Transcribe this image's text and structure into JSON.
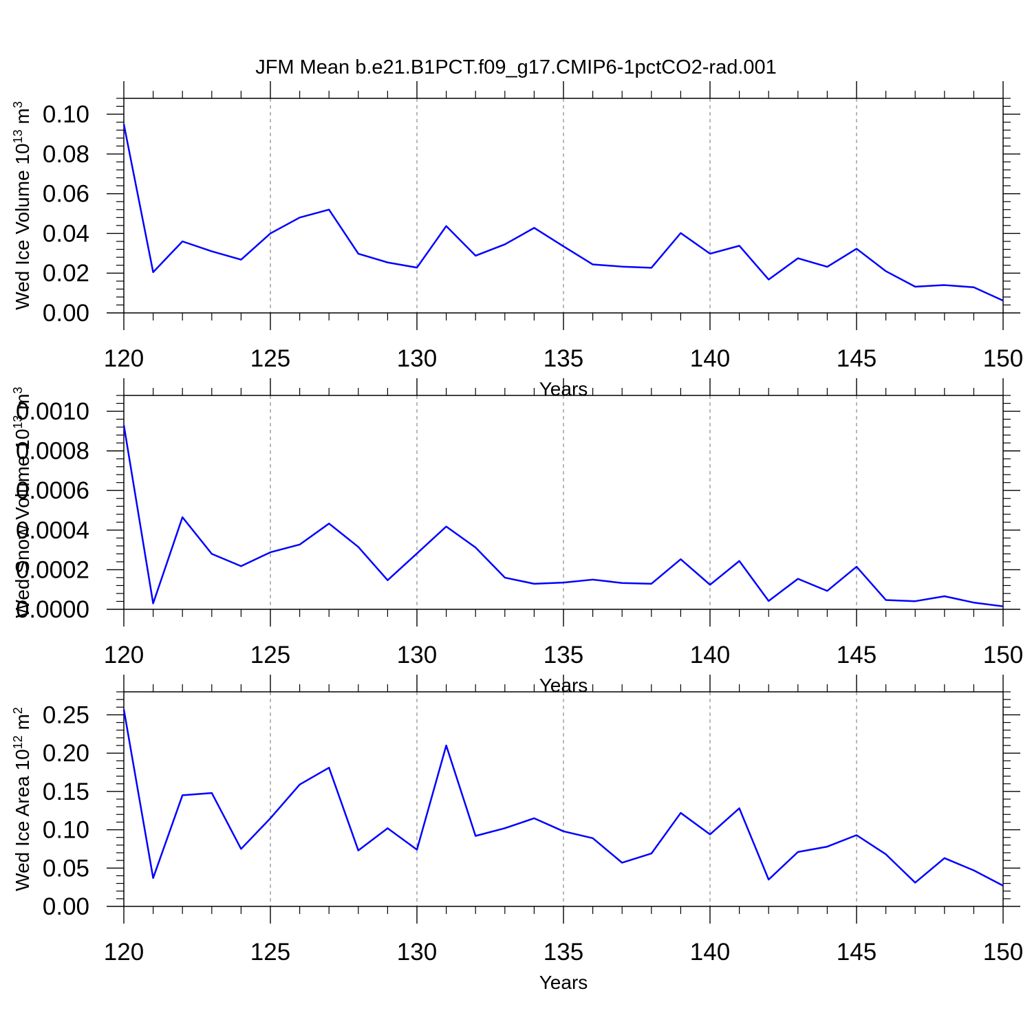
{
  "title": "JFM Mean b.e21.B1PCT.f09_g17.CMIP6-1pctCO2-rad.001",
  "colors": {
    "line": "#0000ff",
    "frame": "#000000",
    "grid": "#888888",
    "background": "#ffffff"
  },
  "chart_data": [
    {
      "type": "line",
      "xlabel": "Years",
      "ylabel": {
        "base": "Wed Ice Volume 10",
        "exponent": "13",
        "unit": " m",
        "unit_exponent": "3"
      },
      "xlim": [
        120,
        150
      ],
      "ylim": [
        0,
        0.108
      ],
      "x_ticks": [
        120,
        125,
        130,
        135,
        140,
        145,
        150
      ],
      "x_tick_labels": [
        "120",
        "125",
        "130",
        "135",
        "140",
        "145",
        "150"
      ],
      "y_ticks": [
        0,
        0.02,
        0.04,
        0.06,
        0.08,
        0.1
      ],
      "y_tick_labels": [
        "0.00",
        "0.02",
        "0.04",
        "0.06",
        "0.08",
        "0.10"
      ],
      "grid": "vertical-dashed",
      "series": [
        {
          "name": "Wed Ice Volume",
          "x": [
            120,
            121,
            122,
            123,
            124,
            125,
            126,
            127,
            128,
            129,
            130,
            131,
            132,
            133,
            134,
            135,
            136,
            137,
            138,
            139,
            140,
            141,
            142,
            143,
            144,
            145,
            146,
            147,
            148,
            149,
            150
          ],
          "values": [
            0.095,
            0.0205,
            0.036,
            0.031,
            0.0268,
            0.04,
            0.048,
            0.052,
            0.0298,
            0.0254,
            0.0228,
            0.0437,
            0.0288,
            0.0345,
            0.0428,
            0.0335,
            0.0244,
            0.0233,
            0.0227,
            0.0402,
            0.0298,
            0.0338,
            0.0168,
            0.0275,
            0.0232,
            0.0323,
            0.021,
            0.0132,
            0.014,
            0.0129,
            0.0062
          ]
        }
      ]
    },
    {
      "type": "line",
      "xlabel": "Years",
      "ylabel": {
        "base": "Wed Snow Volume 10",
        "exponent": "13",
        "unit": " m",
        "unit_exponent": "3"
      },
      "xlim": [
        120,
        150
      ],
      "ylim": [
        0,
        0.00108
      ],
      "x_ticks": [
        120,
        125,
        130,
        135,
        140,
        145,
        150
      ],
      "x_tick_labels": [
        "120",
        "125",
        "130",
        "135",
        "140",
        "145",
        "150"
      ],
      "y_ticks": [
        0,
        0.0002,
        0.0004,
        0.0006,
        0.0008,
        0.001
      ],
      "y_tick_labels": [
        "0.0000",
        "0.0002",
        "0.0004",
        "0.0006",
        "0.0008",
        "0.0010"
      ],
      "grid": "vertical-dashed",
      "series": [
        {
          "name": "Wed Snow Volume",
          "x": [
            120,
            121,
            122,
            123,
            124,
            125,
            126,
            127,
            128,
            129,
            130,
            131,
            132,
            133,
            134,
            135,
            136,
            137,
            138,
            139,
            140,
            141,
            142,
            143,
            144,
            145,
            146,
            147,
            148,
            149,
            150
          ],
          "values": [
            0.00093,
            3e-05,
            0.000465,
            0.00028,
            0.000218,
            0.000288,
            0.000327,
            0.000433,
            0.000315,
            0.000147,
            0.000282,
            0.000418,
            0.000312,
            0.00016,
            0.000129,
            0.000135,
            0.00015,
            0.000133,
            0.000129,
            0.000253,
            0.000124,
            0.000244,
            4.2e-05,
            0.000154,
            9.3e-05,
            0.000215,
            4.7e-05,
            4.1e-05,
            6.6e-05,
            3.4e-05,
            1.5e-05
          ]
        }
      ]
    },
    {
      "type": "line",
      "xlabel": "Years",
      "ylabel": {
        "base": "Wed Ice Area 10",
        "exponent": "12",
        "unit": " m",
        "unit_exponent": "2"
      },
      "xlim": [
        120,
        150
      ],
      "ylim": [
        0,
        0.28
      ],
      "x_ticks": [
        120,
        125,
        130,
        135,
        140,
        145,
        150
      ],
      "x_tick_labels": [
        "120",
        "125",
        "130",
        "135",
        "140",
        "145",
        "150"
      ],
      "y_ticks": [
        0,
        0.05,
        0.1,
        0.15,
        0.2,
        0.25
      ],
      "y_tick_labels": [
        "0.00",
        "0.05",
        "0.10",
        "0.15",
        "0.20",
        "0.25"
      ],
      "grid": "vertical-dashed",
      "series": [
        {
          "name": "Wed Ice Area",
          "x": [
            120,
            121,
            122,
            123,
            124,
            125,
            126,
            127,
            128,
            129,
            130,
            131,
            132,
            133,
            134,
            135,
            136,
            137,
            138,
            139,
            140,
            141,
            142,
            143,
            144,
            145,
            146,
            147,
            148,
            149,
            150
          ],
          "values": [
            0.257,
            0.037,
            0.145,
            0.148,
            0.075,
            0.115,
            0.159,
            0.181,
            0.073,
            0.102,
            0.074,
            0.21,
            0.092,
            0.102,
            0.115,
            0.098,
            0.089,
            0.057,
            0.069,
            0.122,
            0.094,
            0.128,
            0.035,
            0.071,
            0.078,
            0.093,
            0.068,
            0.031,
            0.063,
            0.047,
            0.027
          ]
        }
      ]
    }
  ]
}
